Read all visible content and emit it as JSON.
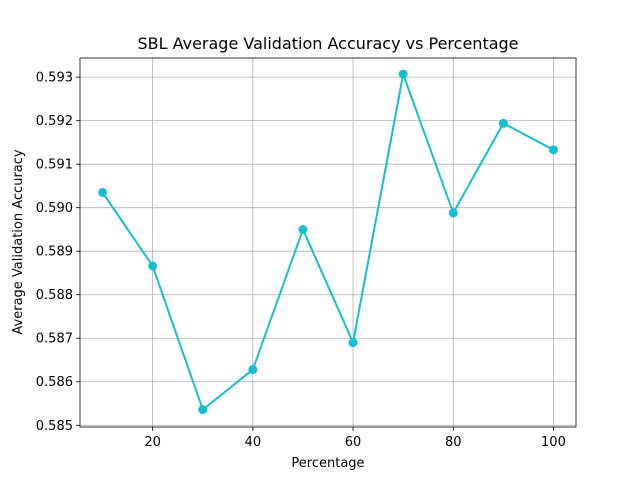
{
  "chart_data": {
    "type": "line",
    "title": "SBL Average Validation Accuracy vs Percentage",
    "xlabel": "Percentage",
    "ylabel": "Average Validation Accuracy",
    "x": [
      10,
      20,
      30,
      40,
      50,
      60,
      70,
      80,
      90,
      100
    ],
    "series": [
      {
        "name": "SBL",
        "color": "#17becf",
        "values": [
          0.59035,
          0.58866,
          0.58536,
          0.58628,
          0.5895,
          0.5869,
          0.59307,
          0.58988,
          0.59194,
          0.59133
        ]
      }
    ],
    "xlim": [
      5.5,
      104.5
    ],
    "ylim": [
      0.58496,
      0.59344
    ],
    "xticks": [
      20,
      40,
      60,
      80,
      100
    ],
    "xtick_labels": [
      "20",
      "40",
      "60",
      "80",
      "100"
    ],
    "yticks": [
      0.585,
      0.586,
      0.587,
      0.588,
      0.589,
      0.59,
      0.591,
      0.592,
      0.593
    ],
    "ytick_labels": [
      "0.585",
      "0.586",
      "0.587",
      "0.588",
      "0.589",
      "0.590",
      "0.591",
      "0.592",
      "0.593"
    ],
    "grid": true,
    "legend": "none"
  }
}
